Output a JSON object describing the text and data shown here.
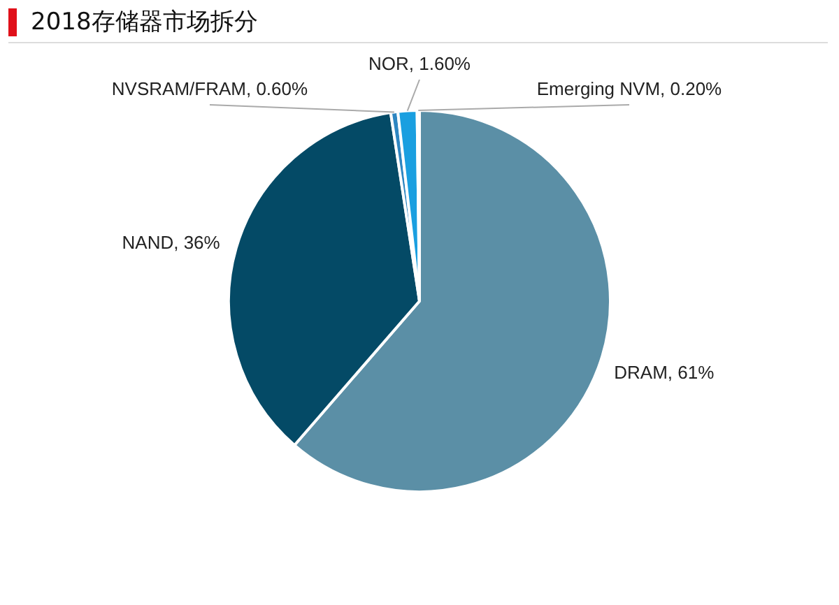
{
  "chart_data": {
    "type": "pie",
    "title": "2018存储器市场拆分",
    "categories": [
      "DRAM",
      "NAND",
      "NVSRAM/FRAM",
      "NOR",
      "Emerging NVM"
    ],
    "values": [
      61,
      36,
      0.6,
      1.6,
      0.2
    ],
    "value_labels": [
      "61%",
      "36%",
      "0.60%",
      "1.60%",
      "0.20%"
    ],
    "colors": [
      "#5b8fa6",
      "#044a66",
      "#2e86c1",
      "#1a9fe0",
      "#9cc9de"
    ],
    "legend": false
  }
}
